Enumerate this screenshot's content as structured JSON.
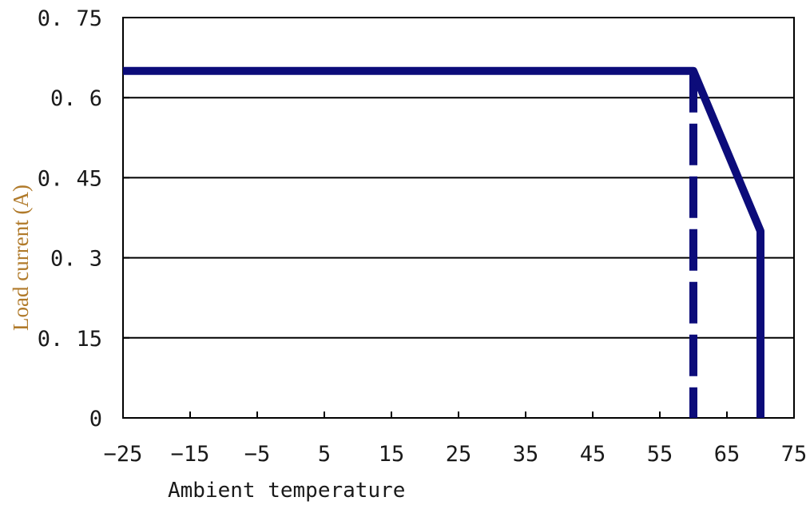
{
  "chart_data": {
    "type": "line",
    "title": "",
    "xlabel": "Ambient temperature",
    "ylabel": "Load current (A)",
    "xlim": [
      -25,
      75
    ],
    "ylim": [
      0,
      0.75
    ],
    "x_ticks": [
      -25,
      -15,
      -5,
      5,
      15,
      25,
      35,
      45,
      55,
      65,
      75
    ],
    "y_ticks": [
      {
        "value": 0,
        "label": "0"
      },
      {
        "value": 0.15,
        "label": "0. 15"
      },
      {
        "value": 0.3,
        "label": "0. 3"
      },
      {
        "value": 0.45,
        "label": "0. 45"
      },
      {
        "value": 0.6,
        "label": "0. 6"
      },
      {
        "value": 0.75,
        "label": "0. 75"
      }
    ],
    "grid": {
      "horizontal": true,
      "vertical": false
    },
    "series": [
      {
        "style": "solid",
        "color": "#0c0c7a",
        "points": [
          {
            "x": -25,
            "y": 0.65
          },
          {
            "x": 60,
            "y": 0.65
          },
          {
            "x": 70,
            "y": 0.35
          },
          {
            "x": 70,
            "y": 0
          }
        ]
      },
      {
        "style": "dashed",
        "color": "#0c0c7a",
        "points": [
          {
            "x": 60,
            "y": 0.65
          },
          {
            "x": 60,
            "y": 0
          }
        ]
      }
    ]
  }
}
